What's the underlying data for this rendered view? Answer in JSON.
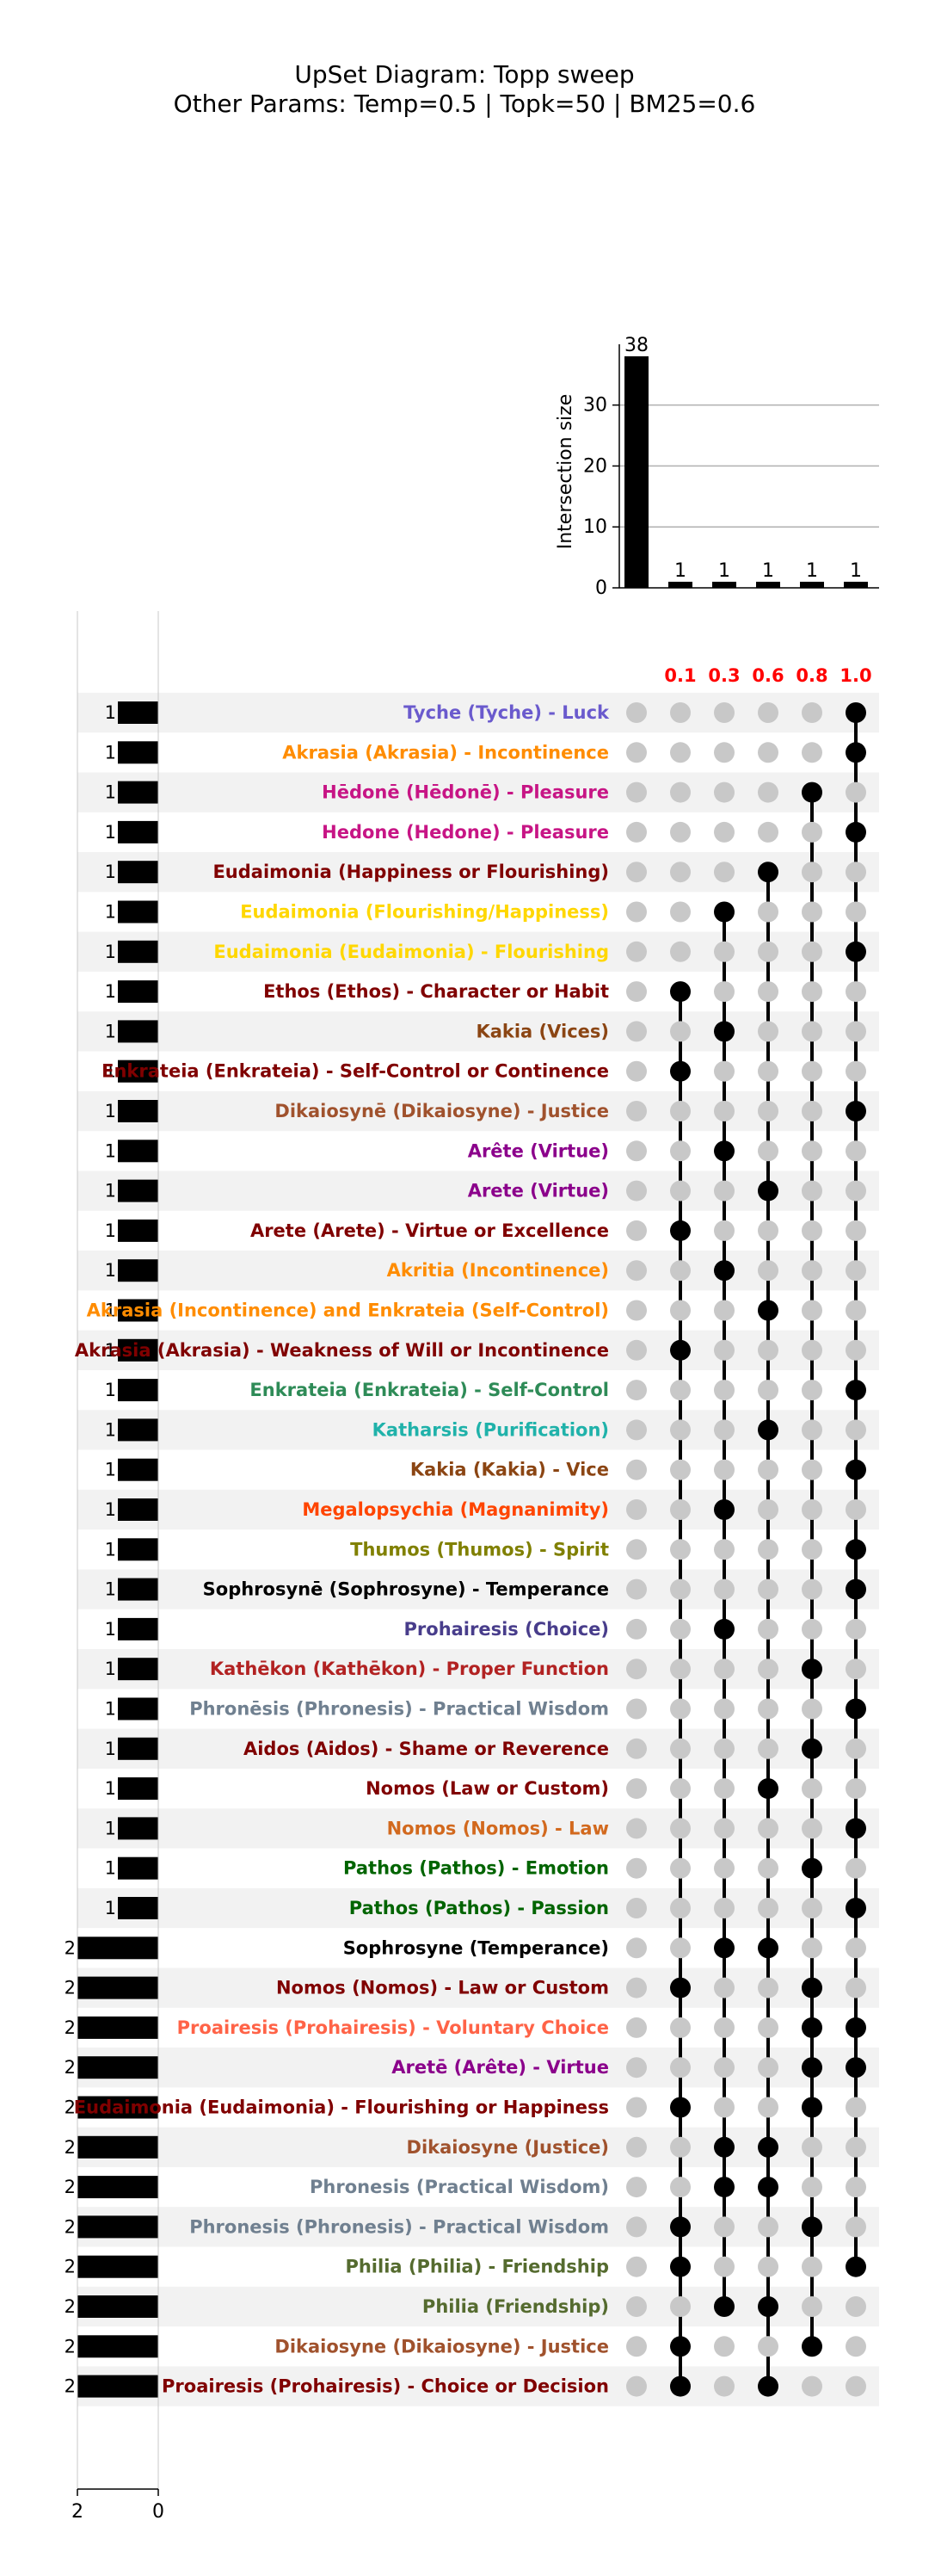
{
  "header": {
    "title": "UpSet Diagram: Topp sweep",
    "subtitle": "Other Params: Temp=0.5 | Topk=50 | BM25=0.6"
  },
  "colors": {
    "bar": "#000000",
    "dot_active": "#000000",
    "dot_inactive": "#c8c8c8",
    "stripe": "#f2f2f2",
    "column_label": "#ff0000",
    "grid": "#b0b0b0"
  },
  "chart_data": {
    "type": "upset",
    "title": "UpSet Diagram: Topp sweep",
    "subtitle": "Other Params: Temp=0.5 | Topk=50 | BM25=0.6",
    "intersection_axis": {
      "label": "Intersection size",
      "ticks": [
        0,
        10,
        20,
        30
      ],
      "ylim": [
        0,
        38
      ],
      "grid": true
    },
    "set_size_axis": {
      "ticks": [
        2,
        0
      ],
      "xlim": [
        0,
        2
      ]
    },
    "columns": [
      "",
      "0.1",
      "0.3",
      "0.6",
      "0.8",
      "1.0"
    ],
    "intersection_sizes": [
      38,
      1,
      1,
      1,
      1,
      1
    ],
    "sets": [
      {
        "name": "Tyche (Tyche) - Luck",
        "size": 1,
        "color": "#6a5acd",
        "members": [
          5
        ]
      },
      {
        "name": "Akrasia (Akrasia) - Incontinence",
        "size": 1,
        "color": "#ff8c00",
        "members": [
          5
        ]
      },
      {
        "name": "Hēdonē (Hēdonē) - Pleasure",
        "size": 1,
        "color": "#c71585",
        "members": [
          4
        ]
      },
      {
        "name": "Hedone (Hedone) - Pleasure",
        "size": 1,
        "color": "#c71585",
        "members": [
          5
        ]
      },
      {
        "name": "Eudaimonia (Happiness or Flourishing)",
        "size": 1,
        "color": "#800000",
        "members": [
          3
        ]
      },
      {
        "name": "Eudaimonia (Flourishing/Happiness)",
        "size": 1,
        "color": "#ffd700",
        "members": [
          2
        ]
      },
      {
        "name": "Eudaimonia (Eudaimonia) - Flourishing",
        "size": 1,
        "color": "#ffd700",
        "members": [
          5
        ]
      },
      {
        "name": "Ethos (Ethos) - Character or Habit",
        "size": 1,
        "color": "#800000",
        "members": [
          1
        ]
      },
      {
        "name": "Kakia (Vices)",
        "size": 1,
        "color": "#8b4513",
        "members": [
          2
        ]
      },
      {
        "name": "Enkrateia (Enkrateia) - Self-Control or Continence",
        "size": 1,
        "color": "#800000",
        "members": [
          1
        ]
      },
      {
        "name": "Dikaiosynē (Dikaiosyne) - Justice",
        "size": 1,
        "color": "#a0522d",
        "members": [
          5
        ]
      },
      {
        "name": "Arête (Virtue)",
        "size": 1,
        "color": "#8b008b",
        "members": [
          2
        ]
      },
      {
        "name": "Arete (Virtue)",
        "size": 1,
        "color": "#8b008b",
        "members": [
          3
        ]
      },
      {
        "name": "Arete (Arete) - Virtue or Excellence",
        "size": 1,
        "color": "#800000",
        "members": [
          1
        ]
      },
      {
        "name": "Akritia (Incontinence)",
        "size": 1,
        "color": "#ff8c00",
        "members": [
          2
        ]
      },
      {
        "name": "Akrasia (Incontinence) and Enkrateia (Self-Control)",
        "size": 1,
        "color": "#ff8c00",
        "members": [
          3
        ]
      },
      {
        "name": "Akrasia (Akrasia) - Weakness of Will or Incontinence",
        "size": 1,
        "color": "#800000",
        "members": [
          1
        ]
      },
      {
        "name": "Enkrateia (Enkrateia) - Self-Control",
        "size": 1,
        "color": "#2e8b57",
        "members": [
          5
        ]
      },
      {
        "name": "Katharsis (Purification)",
        "size": 1,
        "color": "#20b2aa",
        "members": [
          3
        ]
      },
      {
        "name": "Kakia (Kakia) - Vice",
        "size": 1,
        "color": "#8b4513",
        "members": [
          5
        ]
      },
      {
        "name": "Megalopsychia (Magnanimity)",
        "size": 1,
        "color": "#ff4500",
        "members": [
          2
        ]
      },
      {
        "name": "Thumos (Thumos) - Spirit",
        "size": 1,
        "color": "#808000",
        "members": [
          5
        ]
      },
      {
        "name": "Sophrosynē (Sophrosyne) - Temperance",
        "size": 1,
        "color": "#000000",
        "members": [
          5
        ]
      },
      {
        "name": "Prohairesis (Choice)",
        "size": 1,
        "color": "#483d8b",
        "members": [
          2
        ]
      },
      {
        "name": "Kathēkon (Kathēkon) - Proper Function",
        "size": 1,
        "color": "#b22222",
        "members": [
          4
        ]
      },
      {
        "name": "Phronēsis (Phronesis) - Practical Wisdom",
        "size": 1,
        "color": "#708090",
        "members": [
          5
        ]
      },
      {
        "name": "Aidos (Aidos) - Shame or Reverence",
        "size": 1,
        "color": "#800000",
        "members": [
          4
        ]
      },
      {
        "name": "Nomos (Law or Custom)",
        "size": 1,
        "color": "#800000",
        "members": [
          3
        ]
      },
      {
        "name": "Nomos (Nomos) - Law",
        "size": 1,
        "color": "#d2691e",
        "members": [
          5
        ]
      },
      {
        "name": "Pathos (Pathos) - Emotion",
        "size": 1,
        "color": "#006400",
        "members": [
          4
        ]
      },
      {
        "name": "Pathos (Pathos) - Passion",
        "size": 1,
        "color": "#006400",
        "members": [
          5
        ]
      },
      {
        "name": "Sophrosyne (Temperance)",
        "size": 2,
        "color": "#000000",
        "members": [
          2,
          3
        ]
      },
      {
        "name": "Nomos (Nomos) - Law or Custom",
        "size": 2,
        "color": "#800000",
        "members": [
          1,
          4
        ]
      },
      {
        "name": "Proairesis (Prohairesis) - Voluntary Choice",
        "size": 2,
        "color": "#ff6347",
        "members": [
          4,
          5
        ]
      },
      {
        "name": "Aretē (Arête) - Virtue",
        "size": 2,
        "color": "#8b008b",
        "members": [
          4,
          5
        ]
      },
      {
        "name": "Eudaimonia (Eudaimonia) - Flourishing or Happiness",
        "size": 2,
        "color": "#800000",
        "members": [
          1,
          4
        ]
      },
      {
        "name": "Dikaiosyne (Justice)",
        "size": 2,
        "color": "#a0522d",
        "members": [
          2,
          3
        ]
      },
      {
        "name": "Phronesis (Practical Wisdom)",
        "size": 2,
        "color": "#708090",
        "members": [
          2,
          3
        ]
      },
      {
        "name": "Phronesis (Phronesis) - Practical Wisdom",
        "size": 2,
        "color": "#708090",
        "members": [
          1,
          4
        ]
      },
      {
        "name": "Philia (Philia) - Friendship",
        "size": 2,
        "color": "#556b2f",
        "members": [
          1,
          5
        ]
      },
      {
        "name": "Philia (Friendship)",
        "size": 2,
        "color": "#556b2f",
        "members": [
          2,
          3
        ]
      },
      {
        "name": "Dikaiosyne (Dikaiosyne) - Justice",
        "size": 2,
        "color": "#a0522d",
        "members": [
          1,
          4
        ]
      },
      {
        "name": "Proairesis (Prohairesis) - Choice or Decision",
        "size": 2,
        "color": "#800000",
        "members": [
          1,
          3
        ]
      }
    ]
  }
}
